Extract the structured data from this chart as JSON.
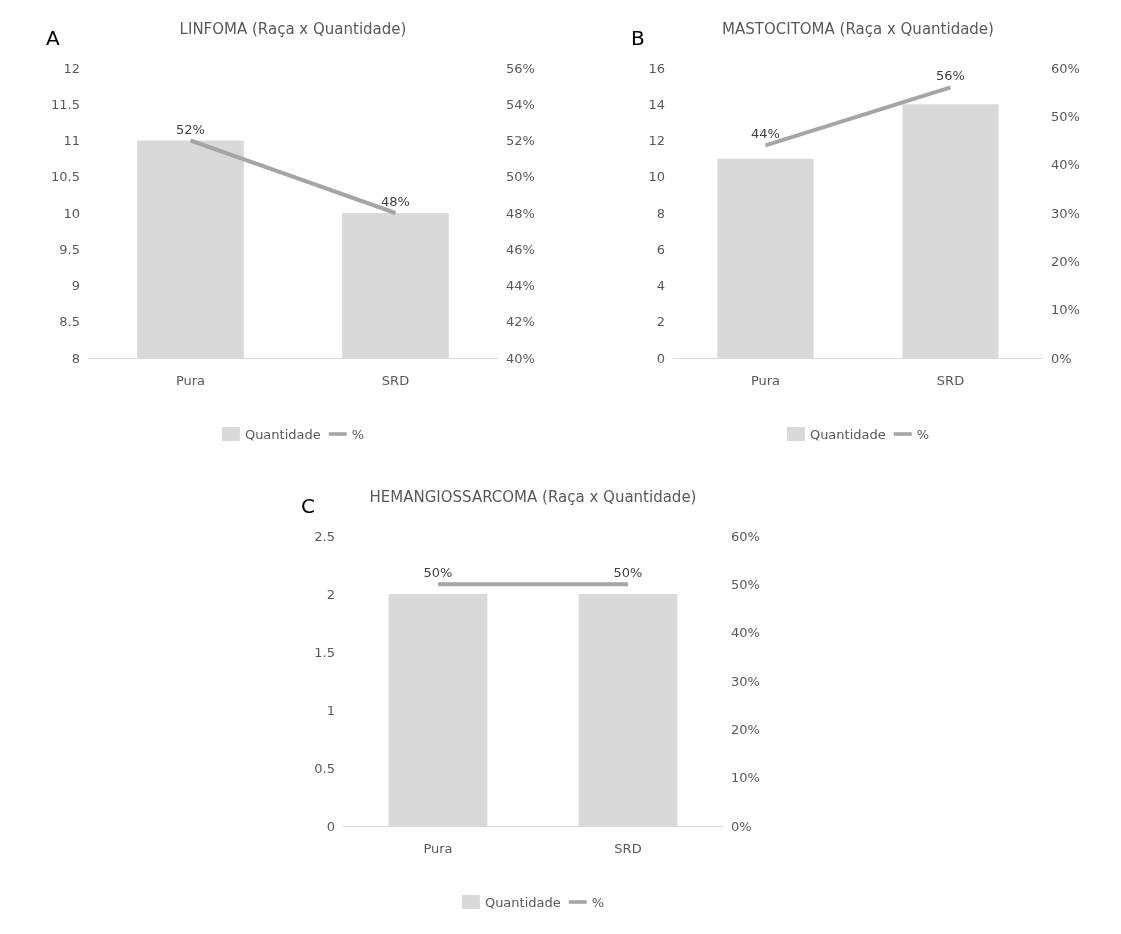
{
  "chart_data": [
    {
      "type": "bar",
      "title": "LINFOMA (Raça x Quantidade)",
      "annotations": [
        "A"
      ],
      "categories": [
        "Pura",
        "SRD"
      ],
      "series": [
        {
          "name": "Quantidade",
          "color": "#d9d9d9",
          "values": [
            11,
            10
          ]
        },
        {
          "name": "%",
          "type": "line",
          "axis": "y2",
          "color": "#a5a5a5",
          "values": [
            52,
            48
          ],
          "value_labels": [
            "52%",
            "48%"
          ]
        }
      ],
      "ylim": [
        8,
        12
      ],
      "yticks": [
        8,
        8.5,
        9,
        9.5,
        10,
        10.5,
        11,
        11.5,
        12
      ],
      "y2lim": [
        40,
        56
      ],
      "y2ticks": [
        {
          "value": 40,
          "label": "40%"
        },
        {
          "value": 42,
          "label": "42%"
        },
        {
          "value": 44,
          "label": "44%"
        },
        {
          "value": 46,
          "label": "46%"
        },
        {
          "value": 48,
          "label": "48%"
        },
        {
          "value": 50,
          "label": "50%"
        },
        {
          "value": 52,
          "label": "52%"
        },
        {
          "value": 54,
          "label": "54%"
        },
        {
          "value": 56,
          "label": "56%"
        }
      ],
      "grid": false,
      "legend": "bottom",
      "marker": "none"
    },
    {
      "type": "bar",
      "title": "MASTOCITOMA (Raça x Quantidade)",
      "annotations": [
        "B"
      ],
      "categories": [
        "Pura",
        "SRD"
      ],
      "series": [
        {
          "name": "Quantidade",
          "color": "#d9d9d9",
          "values": [
            11,
            14
          ]
        },
        {
          "name": "%",
          "type": "line",
          "axis": "y2",
          "color": "#a5a5a5",
          "values": [
            44,
            56
          ],
          "value_labels": [
            "44%",
            "56%"
          ]
        }
      ],
      "ylim": [
        0,
        16
      ],
      "yticks": [
        0,
        2,
        4,
        6,
        8,
        10,
        12,
        14,
        16
      ],
      "y2lim": [
        0,
        60
      ],
      "y2ticks": [
        {
          "value": 0,
          "label": "0%"
        },
        {
          "value": 10,
          "label": "10%"
        },
        {
          "value": 20,
          "label": "20%"
        },
        {
          "value": 30,
          "label": "30%"
        },
        {
          "value": 40,
          "label": "40%"
        },
        {
          "value": 50,
          "label": "50%"
        },
        {
          "value": 60,
          "label": "60%"
        }
      ],
      "grid": false,
      "legend": "bottom",
      "marker": "none"
    },
    {
      "type": "bar",
      "title": "HEMANGIOSSARCOMA (Raça x Quantidade)",
      "annotations": [
        "C"
      ],
      "categories": [
        "Pura",
        "SRD"
      ],
      "series": [
        {
          "name": "Quantidade",
          "color": "#d9d9d9",
          "values": [
            2,
            2
          ]
        },
        {
          "name": "%",
          "type": "line",
          "axis": "y2",
          "color": "#a5a5a5",
          "values": [
            50,
            50
          ],
          "value_labels": [
            "50%",
            "50%"
          ]
        }
      ],
      "ylim": [
        0,
        2.5
      ],
      "yticks": [
        0,
        0.5,
        1,
        1.5,
        2,
        2.5
      ],
      "y2lim": [
        0,
        60
      ],
      "y2ticks": [
        {
          "value": 0,
          "label": "0%"
        },
        {
          "value": 10,
          "label": "10%"
        },
        {
          "value": 20,
          "label": "20%"
        },
        {
          "value": 30,
          "label": "30%"
        },
        {
          "value": 40,
          "label": "40%"
        },
        {
          "value": 50,
          "label": "50%"
        },
        {
          "value": 60,
          "label": "60%"
        }
      ],
      "grid": false,
      "legend": "bottom",
      "marker": "none"
    }
  ]
}
